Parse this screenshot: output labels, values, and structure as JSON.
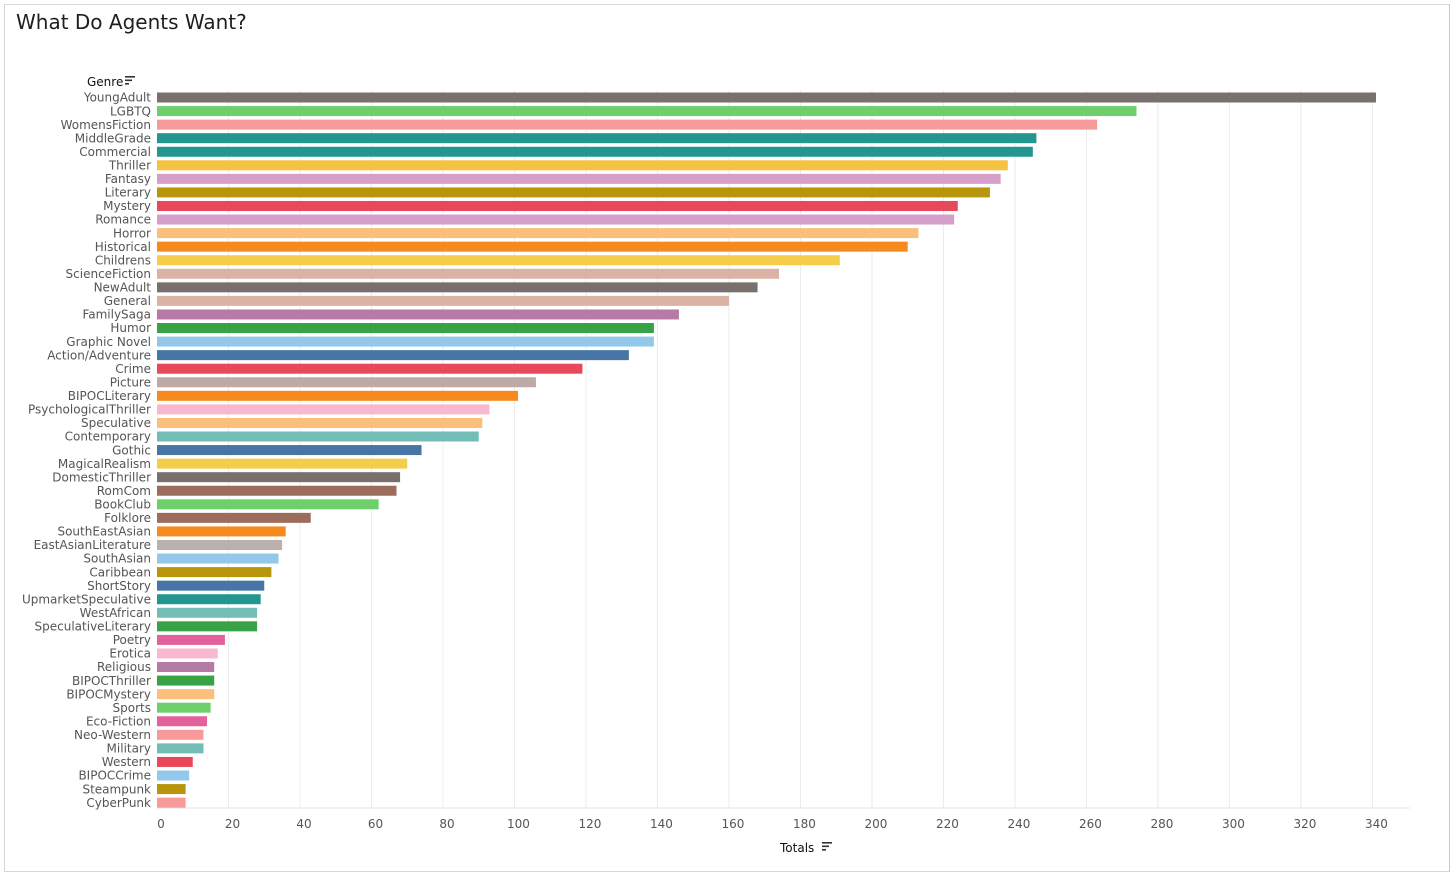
{
  "title": "What Do Agents Want?",
  "chart_data": {
    "type": "bar",
    "orientation": "horizontal",
    "title": "What Do Agents Want?",
    "ylabel": "Genre",
    "xlabel": "Totals",
    "xlim": [
      0,
      350
    ],
    "xticks": [
      0,
      20,
      40,
      60,
      80,
      100,
      120,
      140,
      160,
      180,
      200,
      220,
      240,
      260,
      280,
      300,
      320,
      340
    ],
    "grid": true,
    "categories": [
      "YoungAdult",
      "LGBTQ",
      "WomensFiction",
      "MiddleGrade",
      "Commercial",
      "Thriller",
      "Fantasy",
      "Literary",
      "Mystery",
      "Romance",
      "Horror",
      "Historical",
      "Childrens",
      "ScienceFiction",
      "NewAdult",
      "General",
      "FamilySaga",
      "Humor",
      "Graphic Novel",
      "Action/Adventure",
      "Crime",
      "Picture",
      "BIPOCLiterary",
      "PsychologicalThriller",
      "Speculative",
      "Contemporary",
      "Gothic",
      "MagicalRealism",
      "DomesticThriller",
      "RomCom",
      "BookClub",
      "Folklore",
      "SouthEastAsian",
      "EastAsianLiterature",
      "SouthAsian",
      "Caribbean",
      "ShortStory",
      "UpmarketSpeculative",
      "WestAfrican",
      "SpeculativeLiterary",
      "Poetry",
      "Erotica",
      "Religious",
      "BIPOCThriller",
      "BIPOCMystery",
      "Sports",
      "Eco-Fiction",
      "Neo-Western",
      "Military",
      "Western",
      "BIPOCCrime",
      "Steampunk",
      "CyberPunk"
    ],
    "values": [
      341,
      274,
      263,
      246,
      245,
      238,
      236,
      233,
      224,
      223,
      213,
      210,
      191,
      174,
      168,
      160,
      146,
      139,
      139,
      132,
      119,
      106,
      101,
      93,
      91,
      90,
      74,
      70,
      68,
      67,
      62,
      43,
      36,
      35,
      34,
      32,
      30,
      29,
      28,
      28,
      19,
      17,
      16,
      16,
      16,
      15,
      14,
      13,
      13,
      10,
      9,
      8,
      8
    ],
    "colors": [
      "#79706e",
      "#6fcf6b",
      "#f69a9a",
      "#23968f",
      "#23968f",
      "#f5c242",
      "#d59fc9",
      "#b8960c",
      "#e8485a",
      "#d59fc9",
      "#fabf7b",
      "#f68a1e",
      "#f5cd4b",
      "#dab3a4",
      "#79706e",
      "#dab3a4",
      "#b57aa6",
      "#37a346",
      "#93c8ea",
      "#4675a6",
      "#e8485a",
      "#bfa9a6",
      "#f68a1e",
      "#f9b8cf",
      "#fabf7b",
      "#73bdb6",
      "#4675a6",
      "#f2cf4b",
      "#79706e",
      "#9c6d5c",
      "#6fcf6b",
      "#9c6d5c",
      "#f68a1e",
      "#bab0ac",
      "#93c8ea",
      "#b8960c",
      "#4675a6",
      "#23968f",
      "#73bdb6",
      "#37a346",
      "#e2619a",
      "#f9b8cf",
      "#b57aa6",
      "#37a346",
      "#fabf7b",
      "#6fcf6b",
      "#e2619a",
      "#f69a9a",
      "#73bdb6",
      "#e8485a",
      "#93c8ea",
      "#b8960c",
      "#f69a9a"
    ]
  }
}
